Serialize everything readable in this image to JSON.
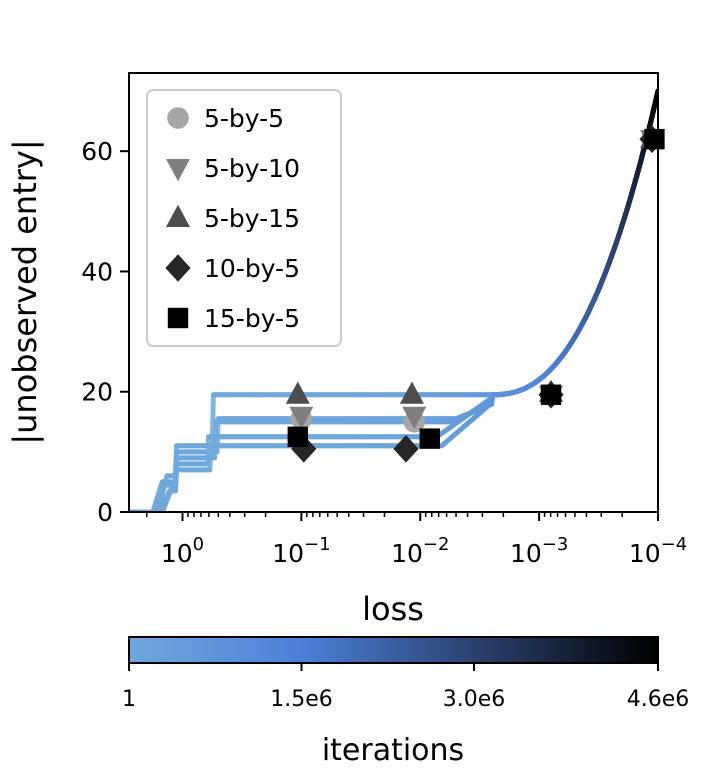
{
  "chart_data": {
    "type": "scatter",
    "xlabel": "loss",
    "ylabel": "|unobserved entry|",
    "x_scale": "log-reversed",
    "x_exponent_range": [
      0.45,
      -4.0
    ],
    "ylim": [
      0,
      73
    ],
    "x_ticks": [
      {
        "base": "10",
        "exp": "0",
        "value": 0
      },
      {
        "base": "10",
        "exp": "−1",
        "value": -1
      },
      {
        "base": "10",
        "exp": "−2",
        "value": -2
      },
      {
        "base": "10",
        "exp": "−3",
        "value": -3
      },
      {
        "base": "10",
        "exp": "−4",
        "value": -4
      }
    ],
    "y_ticks": [
      {
        "label": "0",
        "value": 0
      },
      {
        "label": "20",
        "value": 20
      },
      {
        "label": "40",
        "value": 40
      },
      {
        "label": "60",
        "value": 60
      }
    ],
    "series": [
      {
        "name": "5-by-5",
        "marker": "circle",
        "color": "#a6a6a6",
        "points": [
          {
            "x": -1.0,
            "y": 15.5
          },
          {
            "x": -1.95,
            "y": 15.0
          },
          {
            "x": -3.1,
            "y": 19.5
          },
          {
            "x": -3.95,
            "y": 62.0
          }
        ]
      },
      {
        "name": "5-by-10",
        "marker": "triangle-down",
        "color": "#7f7f7f",
        "points": [
          {
            "x": -1.0,
            "y": 16.0
          },
          {
            "x": -1.95,
            "y": 16.0
          },
          {
            "x": -3.1,
            "y": 19.5
          },
          {
            "x": -3.95,
            "y": 62.0
          }
        ]
      },
      {
        "name": "5-by-15",
        "marker": "triangle-up",
        "color": "#4d4d4d",
        "points": [
          {
            "x": -0.97,
            "y": 19.5
          },
          {
            "x": -1.93,
            "y": 19.5
          },
          {
            "x": -3.1,
            "y": 19.8
          },
          {
            "x": -3.95,
            "y": 62.0
          }
        ]
      },
      {
        "name": "10-by-5",
        "marker": "diamond",
        "color": "#262626",
        "points": [
          {
            "x": -1.02,
            "y": 10.5
          },
          {
            "x": -1.88,
            "y": 10.5
          },
          {
            "x": -3.1,
            "y": 19.5
          },
          {
            "x": -3.95,
            "y": 62.0
          }
        ]
      },
      {
        "name": "15-by-5",
        "marker": "square",
        "color": "#000000",
        "points": [
          {
            "x": -0.97,
            "y": 12.5
          },
          {
            "x": -2.08,
            "y": 12.2
          },
          {
            "x": -3.1,
            "y": 19.5
          },
          {
            "x": -3.97,
            "y": 62.0
          }
        ]
      }
    ],
    "trajectories": [
      {
        "name": "5-by-5",
        "plateau": 15.5,
        "steps": [
          5,
          10
        ]
      },
      {
        "name": "5-by-10",
        "plateau": 15.0,
        "steps": [
          4.5,
          9
        ]
      },
      {
        "name": "5-by-15",
        "plateau": 19.5,
        "steps": [
          6,
          11
        ]
      },
      {
        "name": "10-by-5",
        "plateau": 11.0,
        "steps": [
          3.5,
          7
        ]
      },
      {
        "name": "15-by-5",
        "plateau": 12.5,
        "steps": [
          4,
          8
        ]
      }
    ],
    "legend_position": "upper-left",
    "colorbar": {
      "title": "iterations",
      "tick_labels": [
        "1",
        "1.5e6",
        "3.0e6",
        "4.6e6"
      ],
      "tick_values": [
        1,
        1500000,
        3000000,
        4600000
      ],
      "max": 4600000,
      "colors": [
        "#6fa8dc",
        "#4a7fd6",
        "#2a3f6a",
        "#000000"
      ]
    }
  }
}
